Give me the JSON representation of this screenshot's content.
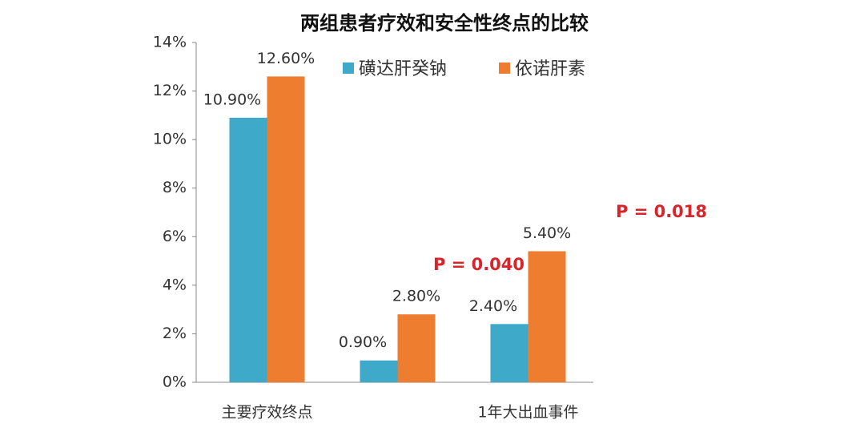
{
  "chart_data": {
    "type": "bar",
    "title": "两组患者疗效和安全性终点的比较",
    "categories": [
      "主要疗效终点",
      null,
      "1年大出血事件"
    ],
    "series": [
      {
        "name": "磺达肝癸钠",
        "color": "#3fa9c9",
        "values": [
          10.9,
          0.9,
          2.4
        ],
        "value_labels": [
          "10.90%",
          "0.90%",
          "2.40%"
        ]
      },
      {
        "name": "依诺肝素",
        "color": "#ee7d30",
        "values": [
          12.6,
          2.8,
          5.4
        ],
        "value_labels": [
          "12.60%",
          "2.80%",
          "5.40%"
        ]
      }
    ],
    "ylim": [
      0,
      14
    ],
    "yticks": [
      {
        "value": 0,
        "label": "0%"
      },
      {
        "value": 2,
        "label": "2%"
      },
      {
        "value": 4,
        "label": "4%"
      },
      {
        "value": 6,
        "label": "6%"
      },
      {
        "value": 8,
        "label": "8%"
      },
      {
        "value": 10,
        "label": "10%"
      },
      {
        "value": 12,
        "label": "12%"
      },
      {
        "value": 14,
        "label": "14%"
      }
    ],
    "annotations": [
      "P = 0.040",
      "P = 0.018"
    ],
    "legend": "top"
  }
}
